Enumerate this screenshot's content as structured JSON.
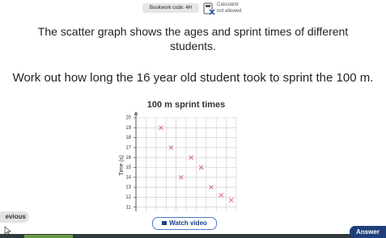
{
  "header": {
    "bookwork": "Bookwork code: 4H",
    "calculator": "Calculator",
    "calculator_note": "not allowed"
  },
  "question": {
    "intro": "The scatter graph shows the ages and sprint times of different students.",
    "task": "Work out how long the 16 year old student took to sprint the 100 m."
  },
  "chart_data": {
    "type": "scatter",
    "title": "100 m sprint times",
    "y_label": "Time (s)",
    "x": [
      2.5,
      3.5,
      5.5,
      6.5,
      4.5,
      7.5,
      8.5,
      9.5
    ],
    "values": [
      19,
      17,
      16,
      15,
      14,
      13,
      12.2,
      11.7
    ],
    "color": "#d0607a",
    "marker": "cross",
    "xlim": [
      0,
      10
    ],
    "ylim": [
      10,
      20
    ],
    "yticks": [
      11,
      12,
      13,
      14,
      15,
      16,
      17,
      18,
      19,
      20
    ],
    "grid": true
  },
  "buttons": {
    "previous": "evious",
    "video": "Watch video",
    "answer": "Answer"
  }
}
